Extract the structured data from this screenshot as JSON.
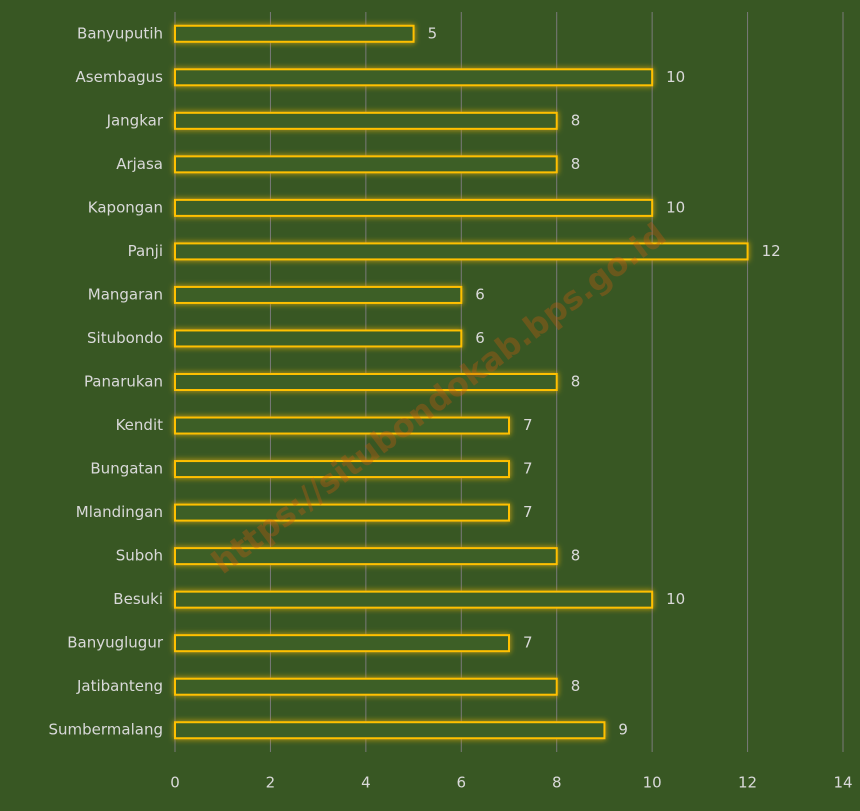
{
  "chart_data": {
    "type": "barh",
    "categories": [
      "Banyuputih",
      "Asembagus",
      "Jangkar",
      "Arjasa",
      "Kapongan",
      "Panji",
      "Mangaran",
      "Situbondo",
      "Panarukan",
      "Kendit",
      "Bungatan",
      "Mlandingan",
      "Suboh",
      "Besuki",
      "Banyuglugur",
      "Jatibanteng",
      "Sumbermalang"
    ],
    "values": [
      5,
      10,
      8,
      8,
      10,
      12,
      6,
      6,
      8,
      7,
      7,
      7,
      8,
      10,
      7,
      8,
      9
    ],
    "color": "#ffc000",
    "xlim": [
      0,
      14
    ],
    "xticks": [
      0,
      2,
      4,
      6,
      8,
      10,
      12,
      14
    ],
    "grid": true,
    "watermark": "https://situbondokab.bps.go.id"
  }
}
